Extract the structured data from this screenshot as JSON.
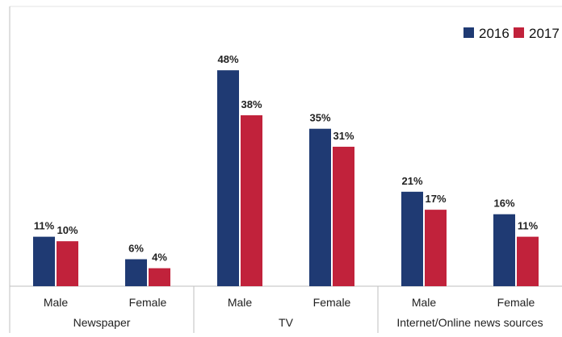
{
  "chart_data": {
    "type": "bar",
    "title": "",
    "xlabel": "",
    "ylabel": "",
    "ylim": [
      0,
      55
    ],
    "grid": false,
    "legend_position": "top-right",
    "colors": {
      "2016": "#1f3a73",
      "2017": "#c1223b"
    },
    "groups": [
      {
        "label": "Newspaper",
        "categories": [
          "Male",
          "Female"
        ]
      },
      {
        "label": "TV",
        "categories": [
          "Male",
          "Female"
        ]
      },
      {
        "label": "Internet/Online news sources",
        "categories": [
          "Male",
          "Female"
        ]
      }
    ],
    "categories": [
      "Male",
      "Female",
      "Male",
      "Female",
      "Male",
      "Female"
    ],
    "series": [
      {
        "name": "2016",
        "values": [
          11,
          6,
          48,
          35,
          21,
          16
        ],
        "labels": [
          "11%",
          "6%",
          "48%",
          "35%",
          "21%",
          "16%"
        ]
      },
      {
        "name": "2017",
        "values": [
          10,
          4,
          38,
          31,
          17,
          11
        ],
        "labels": [
          "10%",
          "4%",
          "38%",
          "31%",
          "17%",
          "11%"
        ]
      }
    ]
  }
}
